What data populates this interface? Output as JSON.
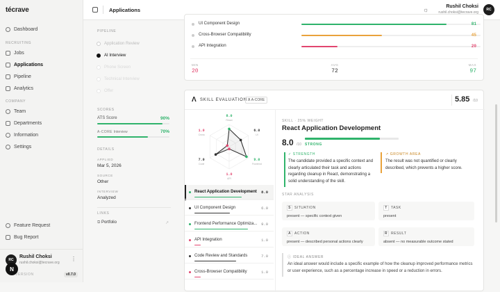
{
  "app": {
    "logo": "técrave",
    "page_title": "Applications"
  },
  "sidebar": {
    "sections": [
      "RECRUITING",
      "COMPANY"
    ],
    "items": [
      {
        "label": "Dashboard",
        "icon": "home-icon"
      },
      {
        "label": "Jobs",
        "icon": "briefcase-icon"
      },
      {
        "label": "Applications",
        "icon": "file-icon"
      },
      {
        "label": "Pipeline",
        "icon": "pipeline-icon"
      },
      {
        "label": "Analytics",
        "icon": "chart-icon"
      },
      {
        "label": "Team",
        "icon": "team-icon"
      },
      {
        "label": "Departments",
        "icon": "building-icon"
      },
      {
        "label": "Information",
        "icon": "info-icon"
      },
      {
        "label": "Settings",
        "icon": "gear-icon"
      },
      {
        "label": "Feature Request",
        "icon": "bulb-icon"
      },
      {
        "label": "Bug Report",
        "icon": "bug-icon"
      }
    ],
    "user": {
      "name": "Rushil Choksi",
      "email": "rushil.choksi@tecrave.org",
      "initials": "RC"
    },
    "version_label": "VERSION",
    "version": "v0.7.0",
    "fab": "N"
  },
  "topbar": {
    "user_name": "Rushil Choksi",
    "user_email": "rushil.choksi@tecrave.org",
    "initials": "RC"
  },
  "details": {
    "pipeline_title": "PIPELINE",
    "pipeline_steps": [
      "Application Review",
      "AI Interview",
      "Phone Screen",
      "Technical Interview",
      "Offer"
    ],
    "scores_title": "SCORES",
    "ats_label": "ATS Score",
    "ats_value": "90%",
    "ats_pct": 90,
    "acore_label": "A-CORE",
    "acore_sub": "Interview",
    "acore_value": "70%",
    "acore_pct": 70,
    "details_title": "DETAILS",
    "applied_label": "APPLIED",
    "applied_value": "Mar 5, 2026",
    "source_label": "SOURCE",
    "source_value": "Other",
    "interview_label": "INTERVIEW",
    "interview_value": "Analyzed",
    "links_title": "LINKS",
    "portfolio": "Portfolio"
  },
  "top_card": {
    "rows": [
      {
        "name": "UI Component Design",
        "score": "81",
        "pct": 81,
        "color": "#2fb36b"
      },
      {
        "name": "Cross-Browser Compatibility",
        "score": "45",
        "pct": 45,
        "color": "#e9a23b"
      },
      {
        "name": "API Integration",
        "score": "20",
        "pct": 20,
        "color": "#e2456f"
      }
    ],
    "stats": [
      {
        "label": "MIN",
        "value": "20",
        "color": "#e2456f"
      },
      {
        "label": "AVG",
        "value": "72",
        "color": "#333333"
      },
      {
        "label": "MAX",
        "value": "97",
        "color": "#2fb36b"
      }
    ]
  },
  "skill_eval": {
    "title": "SKILL EVALUATION",
    "badge": "A-CORE",
    "score": "5.85",
    "score_suffix": "/10",
    "radar": [
      {
        "value": "8.0",
        "label": "React",
        "color": "#2fb36b"
      },
      {
        "value": "6.0",
        "label": "UI",
        "color": "#333333"
      },
      {
        "value": "9.0",
        "label": "Frontend",
        "color": "#2fb36b"
      },
      {
        "value": "1.0",
        "label": "API",
        "color": "#e2456f"
      },
      {
        "value": "7.0",
        "label": "Code",
        "color": "#333333"
      },
      {
        "value": "1.0",
        "label": "Cross",
        "color": "#e2456f"
      }
    ],
    "skills": [
      {
        "name": "React Application Development",
        "score": "8.0",
        "color": "#2fb36b",
        "pct": 80
      },
      {
        "name": "UI Component Design",
        "score": "6.0",
        "color": "#333333",
        "pct": 60
      },
      {
        "name": "Frontend Performance Optimiza...",
        "score": "9.0",
        "color": "#2fb36b",
        "pct": 90
      },
      {
        "name": "API Integration",
        "score": "1.0",
        "color": "#e2456f",
        "pct": 10
      },
      {
        "name": "Code Review and Standards",
        "score": "7.0",
        "color": "#333333",
        "pct": 70
      },
      {
        "name": "Cross-Browser Compatibility",
        "score": "1.0",
        "color": "#e2456f",
        "pct": 10
      }
    ],
    "detail": {
      "meta": "SKILL · 25% WEIGHT",
      "title": "React Application Development",
      "score": "8.0",
      "score_suffix": "/10",
      "score_pct": 80,
      "level": "STRONG",
      "strength_label": "STRENGTH",
      "strength_text": "The candidate provided a specific context and clearly articulated their task and actions regarding cleanup in React, demonstrating a solid understanding of the skill.",
      "growth_label": "GROWTH AREA",
      "growth_text": "The result was not quantified or clearly described, which prevents a higher score.",
      "star_title": "STAR ANALYSIS",
      "star": [
        {
          "letter": "S",
          "label": "SITUATION",
          "value": "present — specific context given"
        },
        {
          "letter": "T",
          "label": "TASK",
          "value": "present"
        },
        {
          "letter": "A",
          "label": "ACTION",
          "value": "present — described personal actions clearly"
        },
        {
          "letter": "R",
          "label": "RESULT",
          "value": "absent — no measurable outcome stated"
        }
      ],
      "ideal_label": "IDEAL ANSWER",
      "ideal_text": "An ideal answer would include a specific example of how the cleanup improved performance metrics or user experience, such as a percentage increase in speed or a reduction in errors."
    }
  }
}
